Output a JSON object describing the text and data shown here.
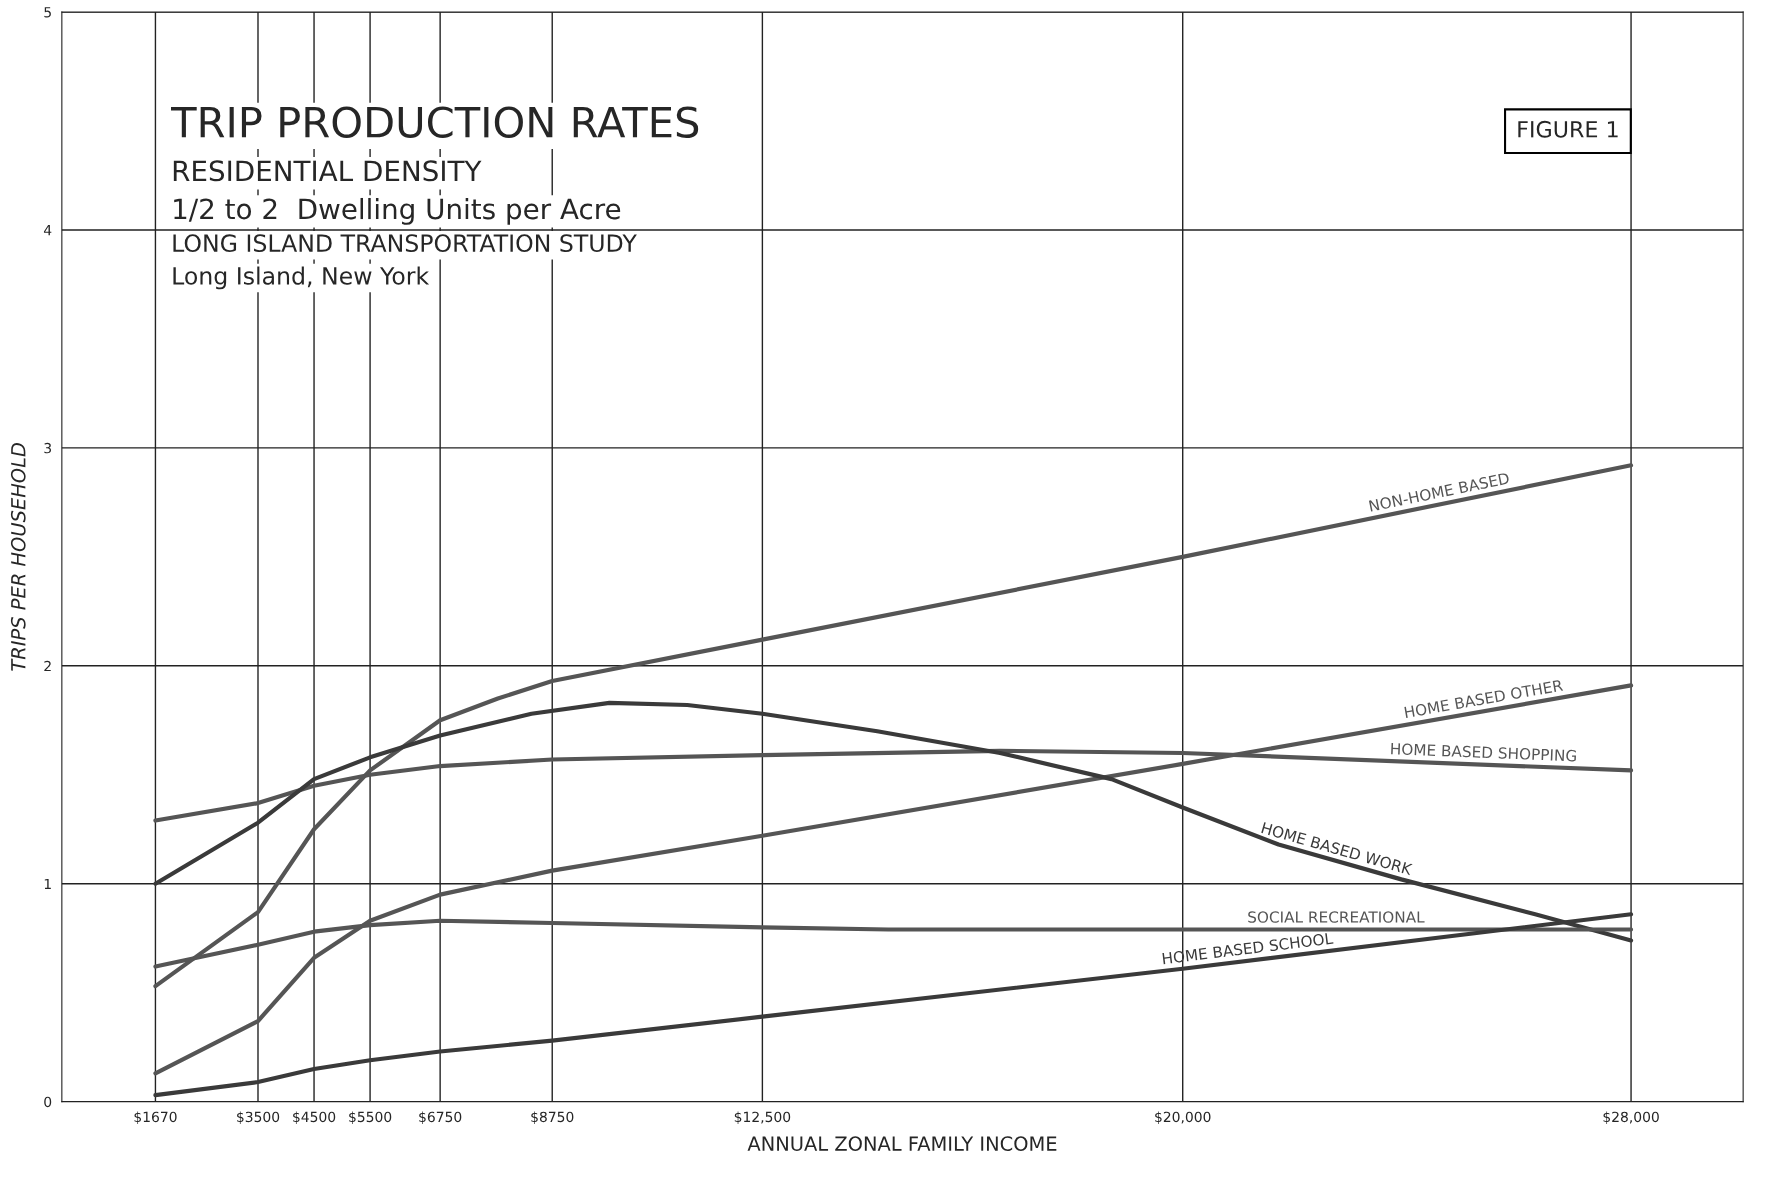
{
  "chart_data": {
    "type": "line",
    "title": "TRIP PRODUCTION RATES",
    "subtitle": "RESIDENTIAL DENSITY",
    "annotations": [
      "1/2 to 2  Dwelling Units per Acre",
      "LONG ISLAND TRANSPORTATION STUDY",
      "Long Island, New York",
      "FIGURE 1"
    ],
    "xlabel": "ANNUAL ZONAL FAMILY INCOME",
    "ylabel": "TRIPS PER HOUSEHOLD",
    "xlim": [
      0,
      30000
    ],
    "ylim": [
      0,
      5
    ],
    "xticks": [
      {
        "value": 1670,
        "label": "$1670"
      },
      {
        "value": 3500,
        "label": "$3500"
      },
      {
        "value": 4500,
        "label": "$4500"
      },
      {
        "value": 5500,
        "label": "$5500"
      },
      {
        "value": 6750,
        "label": "$6750"
      },
      {
        "value": 8750,
        "label": "$8750"
      },
      {
        "value": 12500,
        "label": "$12,500"
      },
      {
        "value": 20000,
        "label": "$20,000"
      },
      {
        "value": 28000,
        "label": "$28,000"
      }
    ],
    "yticks": [
      0,
      1,
      2,
      3,
      4,
      5
    ],
    "grid": true,
    "line_style": "solid",
    "series": [
      {
        "name": "NON-HOME BASED",
        "color": "#555555",
        "x": [
          1670,
          3500,
          4500,
          5500,
          6750,
          7780,
          8750,
          12500,
          20000,
          28000
        ],
        "values": [
          0.53,
          0.87,
          1.25,
          1.52,
          1.75,
          1.85,
          1.93,
          2.12,
          2.5,
          2.92
        ]
      },
      {
        "name": "HOME BASED OTHER",
        "color": "#555555",
        "x": [
          1670,
          3500,
          4500,
          5500,
          6750,
          8750,
          12500,
          20000,
          28000
        ],
        "values": [
          0.13,
          0.37,
          0.66,
          0.83,
          0.95,
          1.06,
          1.22,
          1.55,
          1.91
        ]
      },
      {
        "name": "HOME BASED SHOPPING",
        "color": "#555555",
        "x": [
          1670,
          3500,
          4500,
          5500,
          6750,
          8750,
          12500,
          16740,
          20000,
          28000
        ],
        "values": [
          1.29,
          1.37,
          1.45,
          1.5,
          1.54,
          1.57,
          1.59,
          1.61,
          1.6,
          1.52
        ]
      },
      {
        "name": "HOME BASED WORK",
        "color": "#3a3a3a",
        "x": [
          1670,
          3500,
          4500,
          5500,
          6750,
          8380,
          9770,
          11160,
          12500,
          14550,
          16740,
          18730,
          20000,
          21710,
          23900,
          26290,
          28000
        ],
        "values": [
          1.0,
          1.28,
          1.48,
          1.58,
          1.68,
          1.78,
          1.83,
          1.82,
          1.78,
          1.7,
          1.6,
          1.48,
          1.35,
          1.18,
          1.02,
          0.86,
          0.74
        ]
      },
      {
        "name": "SOCIAL RECREATIONAL",
        "color": "#555555",
        "x": [
          1670,
          3500,
          4500,
          5500,
          6750,
          8750,
          12500,
          14750,
          20000,
          28000
        ],
        "values": [
          0.62,
          0.72,
          0.78,
          0.81,
          0.83,
          0.82,
          0.8,
          0.79,
          0.79,
          0.79
        ]
      },
      {
        "name": "HOME BASED SCHOOL",
        "color": "#3a3a3a",
        "x": [
          1670,
          3500,
          4500,
          5500,
          6750,
          8750,
          12500,
          20000,
          28000
        ],
        "values": [
          0.03,
          0.09,
          0.15,
          0.19,
          0.23,
          0.28,
          0.39,
          0.61,
          0.86
        ]
      }
    ]
  }
}
